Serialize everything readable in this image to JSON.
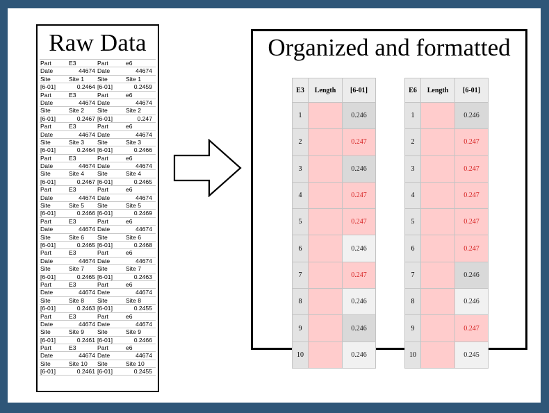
{
  "raw": {
    "title": "Raw Data",
    "rows": [
      [
        "Part",
        "E3",
        "Part",
        "e6"
      ],
      [
        "Date",
        "44674",
        "Date",
        "44674"
      ],
      [
        "Site",
        "Site 1",
        "Site",
        "Site 1"
      ],
      [
        "[6-01]",
        "0.2464",
        "[6-01]",
        "0.2459"
      ],
      [
        "Part",
        "E3",
        "Part",
        "e6"
      ],
      [
        "Date",
        "44674",
        "Date",
        "44674"
      ],
      [
        "Site",
        "Site 2",
        "Site",
        "Site 2"
      ],
      [
        "[6-01]",
        "0.2467",
        "[6-01]",
        "0.247"
      ],
      [
        "Part",
        "E3",
        "Part",
        "e6"
      ],
      [
        "Date",
        "44674",
        "Date",
        "44674"
      ],
      [
        "Site",
        "Site 3",
        "Site",
        "Site 3"
      ],
      [
        "[6-01]",
        "0.2464",
        "[6-01]",
        "0.2466"
      ],
      [
        "Part",
        "E3",
        "Part",
        "e6"
      ],
      [
        "Date",
        "44674",
        "Date",
        "44674"
      ],
      [
        "Site",
        "Site 4",
        "Site",
        "Site 4"
      ],
      [
        "[6-01]",
        "0.2467",
        "[6-01]",
        "0.2465"
      ],
      [
        "Part",
        "E3",
        "Part",
        "e6"
      ],
      [
        "Date",
        "44674",
        "Date",
        "44674"
      ],
      [
        "Site",
        "Site 5",
        "Site",
        "Site 5"
      ],
      [
        "[6-01]",
        "0.2466",
        "[6-01]",
        "0.2469"
      ],
      [
        "Part",
        "E3",
        "Part",
        "e6"
      ],
      [
        "Date",
        "44674",
        "Date",
        "44674"
      ],
      [
        "Site",
        "Site 6",
        "Site",
        "Site 6"
      ],
      [
        "[6-01]",
        "0.2465",
        "[6-01]",
        "0.2468"
      ],
      [
        "Part",
        "E3",
        "Part",
        "e6"
      ],
      [
        "Date",
        "44674",
        "Date",
        "44674"
      ],
      [
        "Site",
        "Site 7",
        "Site",
        "Site 7"
      ],
      [
        "[6-01]",
        "0.2465",
        "[6-01]",
        "0.2463"
      ],
      [
        "Part",
        "E3",
        "Part",
        "e6"
      ],
      [
        "Date",
        "44674",
        "Date",
        "44674"
      ],
      [
        "Site",
        "Site 8",
        "Site",
        "Site 8"
      ],
      [
        "[6-01]",
        "0.2463",
        "[6-01]",
        "0.2455"
      ],
      [
        "Part",
        "E3",
        "Part",
        "e6"
      ],
      [
        "Date",
        "44674",
        "Date",
        "44674"
      ],
      [
        "Site",
        "Site 9",
        "Site",
        "Site 9"
      ],
      [
        "[6-01]",
        "0.2461",
        "[6-01]",
        "0.2466"
      ],
      [
        "Part",
        "E3",
        "Part",
        "e6"
      ],
      [
        "Date",
        "44674",
        "Date",
        "44674"
      ],
      [
        "Site",
        "Site 10",
        "Site",
        "Site 10"
      ],
      [
        "[6-01]",
        "0.2461",
        "[6-01]",
        "0.2455"
      ]
    ]
  },
  "arrow_icon": "right-arrow-outline",
  "organized": {
    "title": "Organized and formatted",
    "tables": [
      {
        "headers": [
          "E3",
          "Length",
          "[6-01]"
        ],
        "rows": [
          {
            "n": "1",
            "v": "0.246",
            "hi": false
          },
          {
            "n": "2",
            "v": "0.247",
            "hi": true
          },
          {
            "n": "3",
            "v": "0.246",
            "hi": false
          },
          {
            "n": "4",
            "v": "0.247",
            "hi": true
          },
          {
            "n": "5",
            "v": "0.247",
            "hi": true
          },
          {
            "n": "6",
            "v": "0.246",
            "hi": false
          },
          {
            "n": "7",
            "v": "0.247",
            "hi": true
          },
          {
            "n": "8",
            "v": "0.246",
            "hi": false
          },
          {
            "n": "9",
            "v": "0.246",
            "hi": false
          },
          {
            "n": "10",
            "v": "0.246",
            "hi": false
          }
        ]
      },
      {
        "headers": [
          "E6",
          "Length",
          "[6-01]"
        ],
        "rows": [
          {
            "n": "1",
            "v": "0.246",
            "hi": false
          },
          {
            "n": "2",
            "v": "0.247",
            "hi": true
          },
          {
            "n": "3",
            "v": "0.247",
            "hi": true
          },
          {
            "n": "4",
            "v": "0.247",
            "hi": true
          },
          {
            "n": "5",
            "v": "0.247",
            "hi": true
          },
          {
            "n": "6",
            "v": "0.247",
            "hi": true
          },
          {
            "n": "7",
            "v": "0.246",
            "hi": false
          },
          {
            "n": "8",
            "v": "0.246",
            "hi": false
          },
          {
            "n": "9",
            "v": "0.247",
            "hi": true
          },
          {
            "n": "10",
            "v": "0.245",
            "hi": false
          }
        ]
      }
    ]
  },
  "colors": {
    "frame": "#2f5678",
    "highlight_fill": "#ffcccc",
    "highlight_text": "#d61f1f"
  }
}
